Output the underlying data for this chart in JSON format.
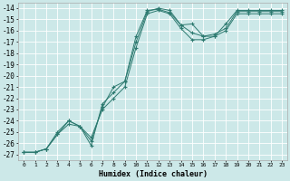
{
  "xlabel": "Humidex (Indice chaleur)",
  "bg_color": "#cce8e8",
  "grid_color": "#ffffff",
  "line_color": "#2d7a70",
  "xlim": [
    -0.5,
    23.5
  ],
  "ylim": [
    -27.5,
    -13.5
  ],
  "xticks": [
    0,
    1,
    2,
    3,
    4,
    5,
    6,
    7,
    8,
    9,
    10,
    11,
    12,
    13,
    14,
    15,
    16,
    17,
    18,
    19,
    20,
    21,
    22,
    23
  ],
  "yticks": [
    -14,
    -15,
    -16,
    -17,
    -18,
    -19,
    -20,
    -21,
    -22,
    -23,
    -24,
    -25,
    -26,
    -27
  ],
  "series": [
    {
      "x": [
        0,
        1,
        2,
        3,
        4,
        5,
        6,
        7,
        8,
        9,
        10,
        11,
        12,
        13,
        14,
        15,
        16,
        17,
        18,
        19,
        20,
        21,
        22,
        23
      ],
      "y": [
        -26.8,
        -26.8,
        -26.5,
        -25.2,
        -24.3,
        -24.5,
        -26.2,
        -22.5,
        -21.5,
        -20.5,
        -16.5,
        -14.2,
        -14.1,
        -14.4,
        -15.5,
        -15.4,
        -16.5,
        -16.5,
        -15.4,
        -14.2,
        -14.2,
        -14.2,
        -14.2,
        -14.2
      ]
    },
    {
      "x": [
        0,
        1,
        2,
        3,
        4,
        5,
        6,
        7,
        8,
        9,
        10,
        11,
        12,
        13,
        14,
        15,
        16,
        17,
        18,
        19,
        20,
        21,
        22,
        23
      ],
      "y": [
        -26.8,
        -26.8,
        -26.5,
        -25.2,
        -24.0,
        -24.5,
        -25.5,
        -23.0,
        -22.0,
        -21.0,
        -17.5,
        -14.5,
        -14.2,
        -14.5,
        -15.8,
        -16.8,
        -16.8,
        -16.5,
        -16.0,
        -14.5,
        -14.5,
        -14.5,
        -14.5,
        -14.5
      ]
    },
    {
      "x": [
        0,
        1,
        2,
        3,
        4,
        5,
        6,
        7,
        8,
        9,
        10,
        11,
        12,
        13,
        14,
        15,
        16,
        17,
        18,
        19,
        20,
        21,
        22,
        23
      ],
      "y": [
        -26.8,
        -26.8,
        -26.5,
        -25.0,
        -24.0,
        -24.5,
        -25.8,
        -22.8,
        -21.0,
        -20.5,
        -17.0,
        -14.3,
        -14.0,
        -14.2,
        -15.5,
        -16.2,
        -16.5,
        -16.3,
        -15.8,
        -14.3,
        -14.3,
        -14.3,
        -14.3,
        -14.3
      ]
    }
  ]
}
